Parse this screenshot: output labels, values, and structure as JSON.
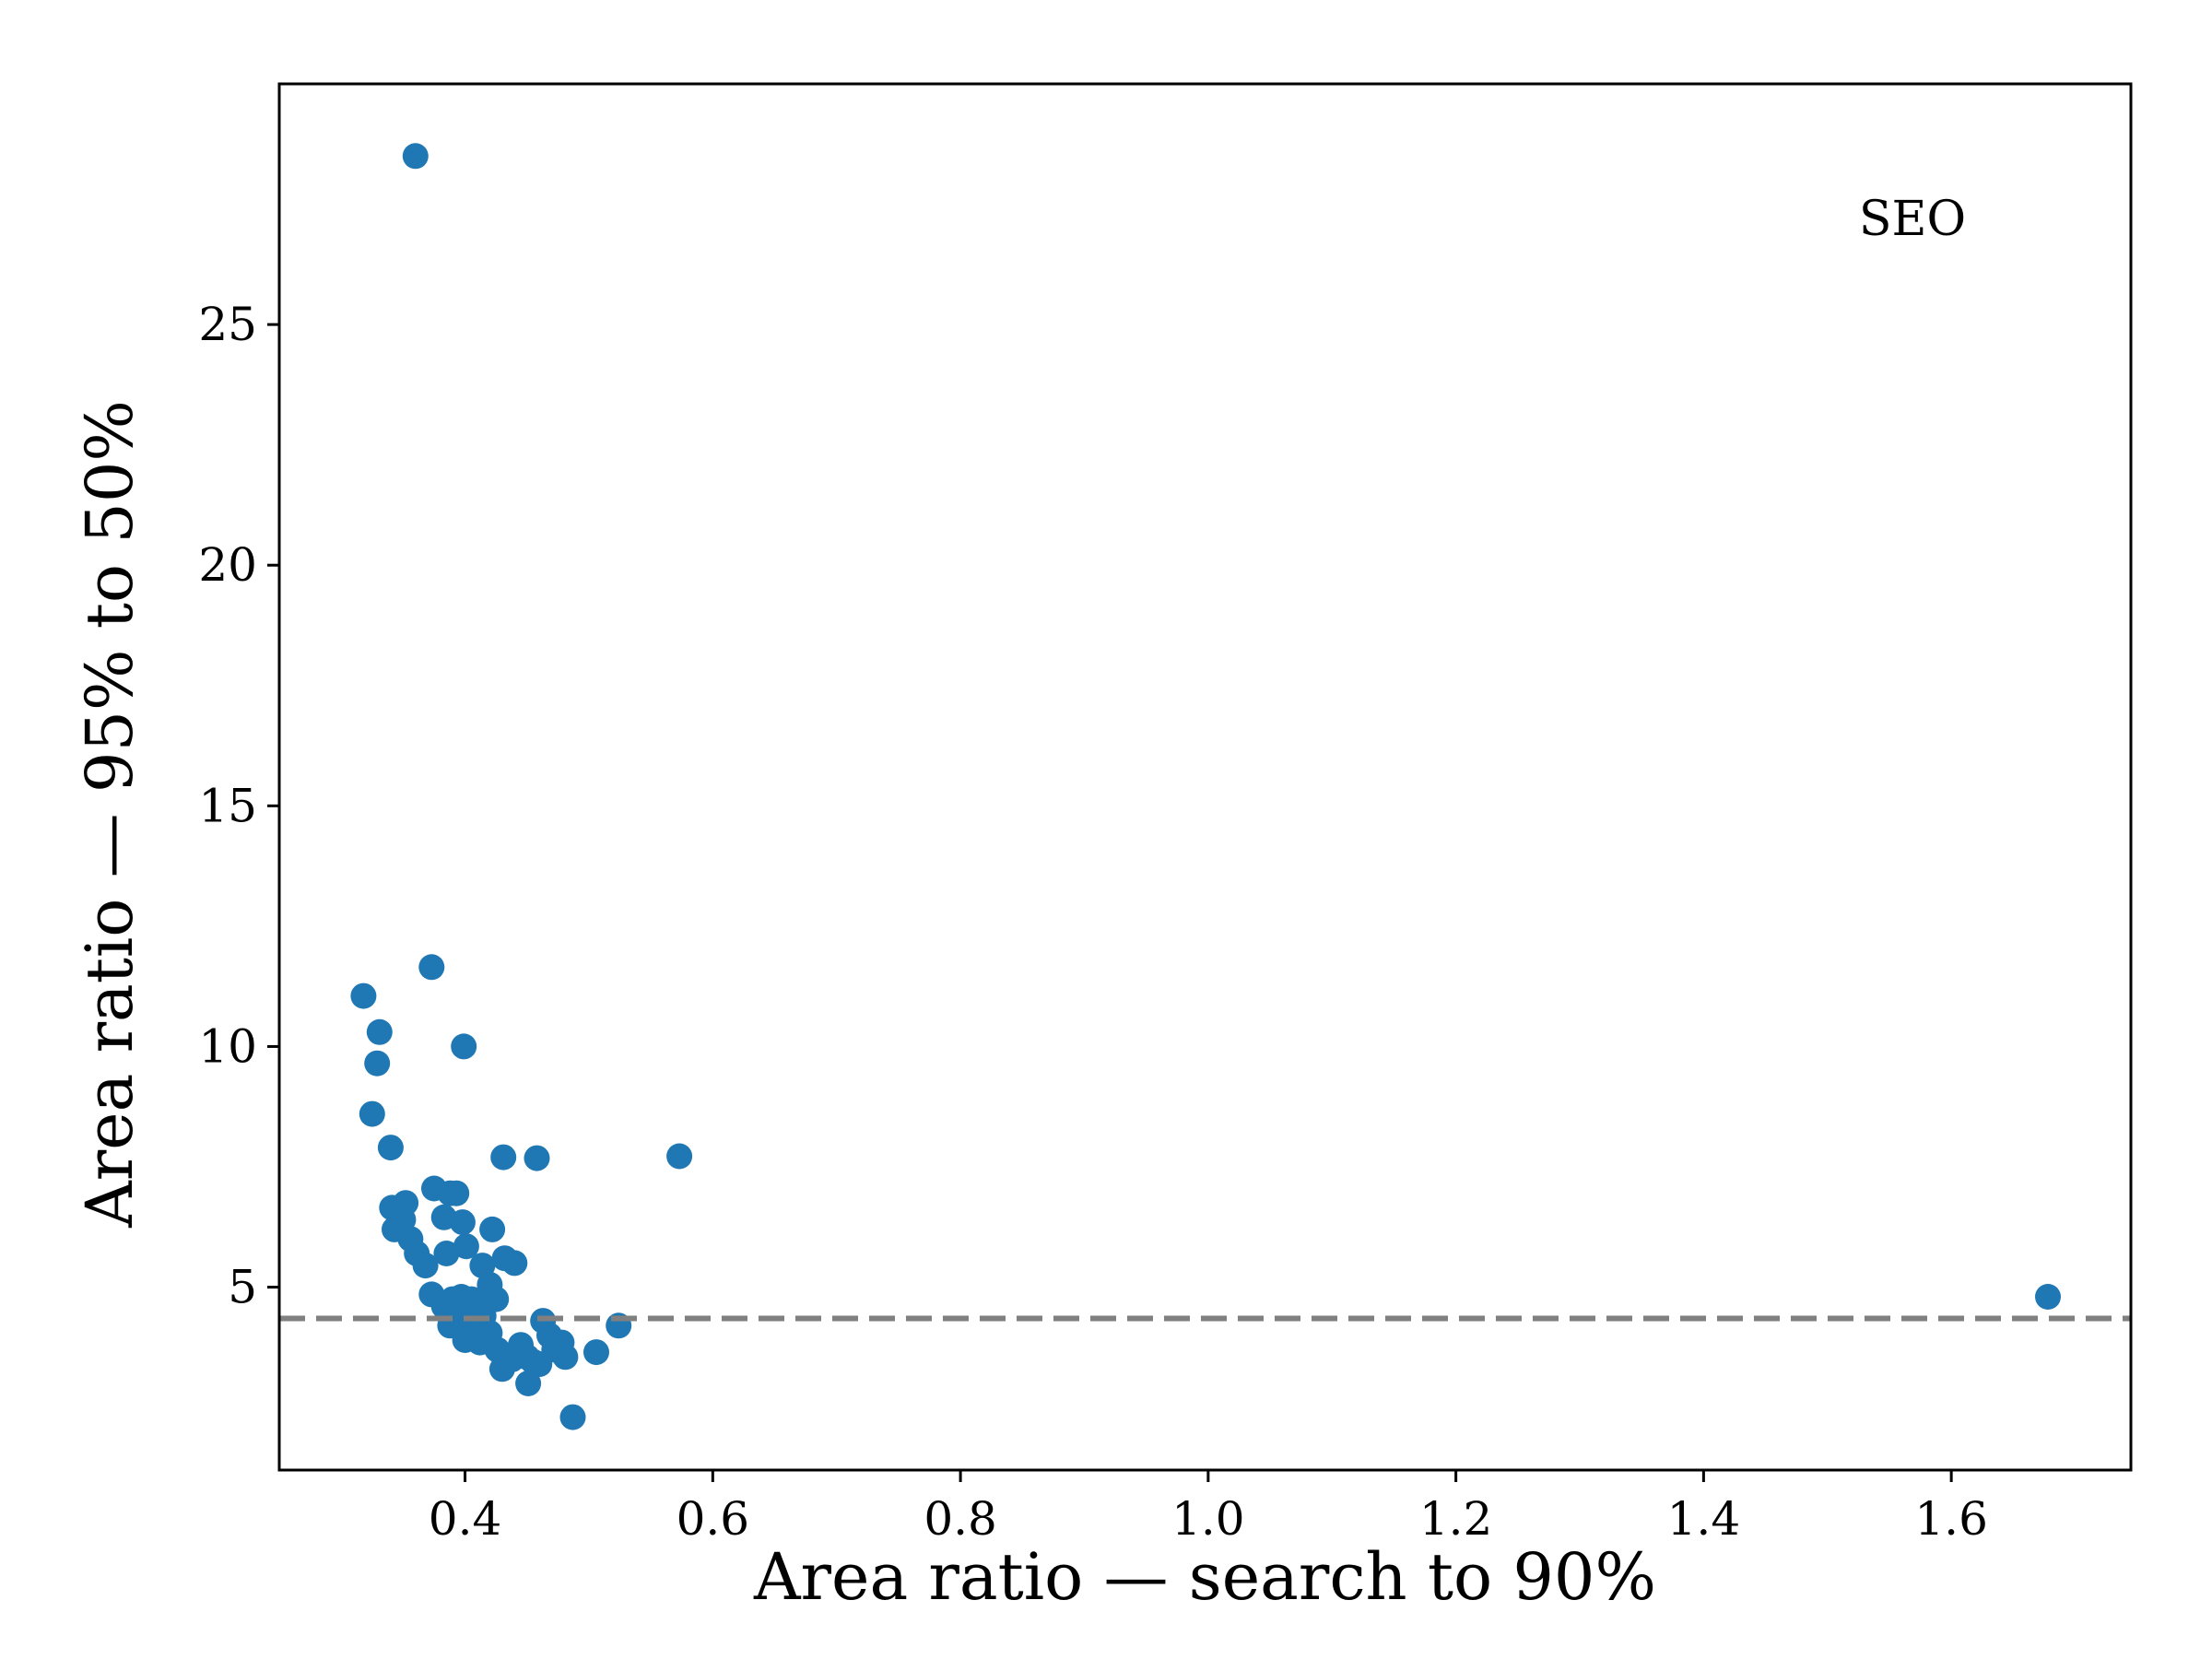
{
  "chart_data": {
    "type": "scatter",
    "title": "",
    "annotation": "SEO",
    "xlabel": "Area ratio — search to 90%",
    "ylabel": "Area ratio — 95% to 50%",
    "xlim": [
      0.25,
      1.745
    ],
    "ylim": [
      1.2,
      30.0
    ],
    "xticks": [
      0.4,
      0.6,
      0.8,
      1.0,
      1.2,
      1.4,
      1.6
    ],
    "xtick_labels": [
      "0.4",
      "0.6",
      "0.8",
      "1.0",
      "1.2",
      "1.4",
      "1.6"
    ],
    "yticks": [
      5,
      10,
      15,
      20,
      25
    ],
    "ytick_labels": [
      "5",
      "10",
      "15",
      "20",
      "25"
    ],
    "reference_line": {
      "y": 4.35,
      "style": "dashed",
      "color": "#808080"
    },
    "grid": false,
    "marker_color": "#1f77b4",
    "points": [
      [
        0.36,
        28.5
      ],
      [
        0.318,
        11.05
      ],
      [
        0.331,
        10.3
      ],
      [
        0.329,
        9.65
      ],
      [
        0.325,
        8.6
      ],
      [
        0.34,
        7.9
      ],
      [
        0.373,
        11.65
      ],
      [
        0.399,
        10.0
      ],
      [
        0.431,
        7.7
      ],
      [
        0.458,
        7.68
      ],
      [
        0.573,
        7.72
      ],
      [
        0.341,
        6.65
      ],
      [
        0.352,
        6.75
      ],
      [
        0.343,
        6.2
      ],
      [
        0.35,
        6.4
      ],
      [
        0.356,
        6.0
      ],
      [
        0.361,
        5.7
      ],
      [
        0.368,
        5.45
      ],
      [
        0.375,
        7.05
      ],
      [
        0.388,
        6.95
      ],
      [
        0.393,
        6.95
      ],
      [
        0.383,
        6.45
      ],
      [
        0.398,
        6.35
      ],
      [
        0.385,
        5.7
      ],
      [
        0.401,
        5.85
      ],
      [
        0.414,
        5.45
      ],
      [
        0.422,
        6.2
      ],
      [
        0.432,
        5.6
      ],
      [
        0.44,
        5.5
      ],
      [
        0.373,
        4.85
      ],
      [
        0.383,
        4.6
      ],
      [
        0.39,
        4.75
      ],
      [
        0.397,
        4.8
      ],
      [
        0.405,
        4.75
      ],
      [
        0.408,
        4.55
      ],
      [
        0.415,
        4.4
      ],
      [
        0.42,
        5.05
      ],
      [
        0.425,
        4.75
      ],
      [
        0.388,
        4.2
      ],
      [
        0.396,
        4.3
      ],
      [
        0.4,
        3.9
      ],
      [
        0.408,
        4.05
      ],
      [
        0.412,
        3.85
      ],
      [
        0.42,
        4.05
      ],
      [
        0.426,
        3.7
      ],
      [
        0.432,
        3.55
      ],
      [
        0.43,
        3.3
      ],
      [
        0.438,
        3.5
      ],
      [
        0.445,
        3.8
      ],
      [
        0.45,
        3.55
      ],
      [
        0.455,
        3.45
      ],
      [
        0.46,
        3.4
      ],
      [
        0.451,
        3.0
      ],
      [
        0.463,
        4.3
      ],
      [
        0.468,
        4.0
      ],
      [
        0.472,
        3.7
      ],
      [
        0.478,
        3.85
      ],
      [
        0.481,
        3.55
      ],
      [
        0.506,
        3.65
      ],
      [
        0.524,
        4.2
      ],
      [
        0.487,
        2.3
      ],
      [
        1.678,
        4.8
      ]
    ]
  }
}
